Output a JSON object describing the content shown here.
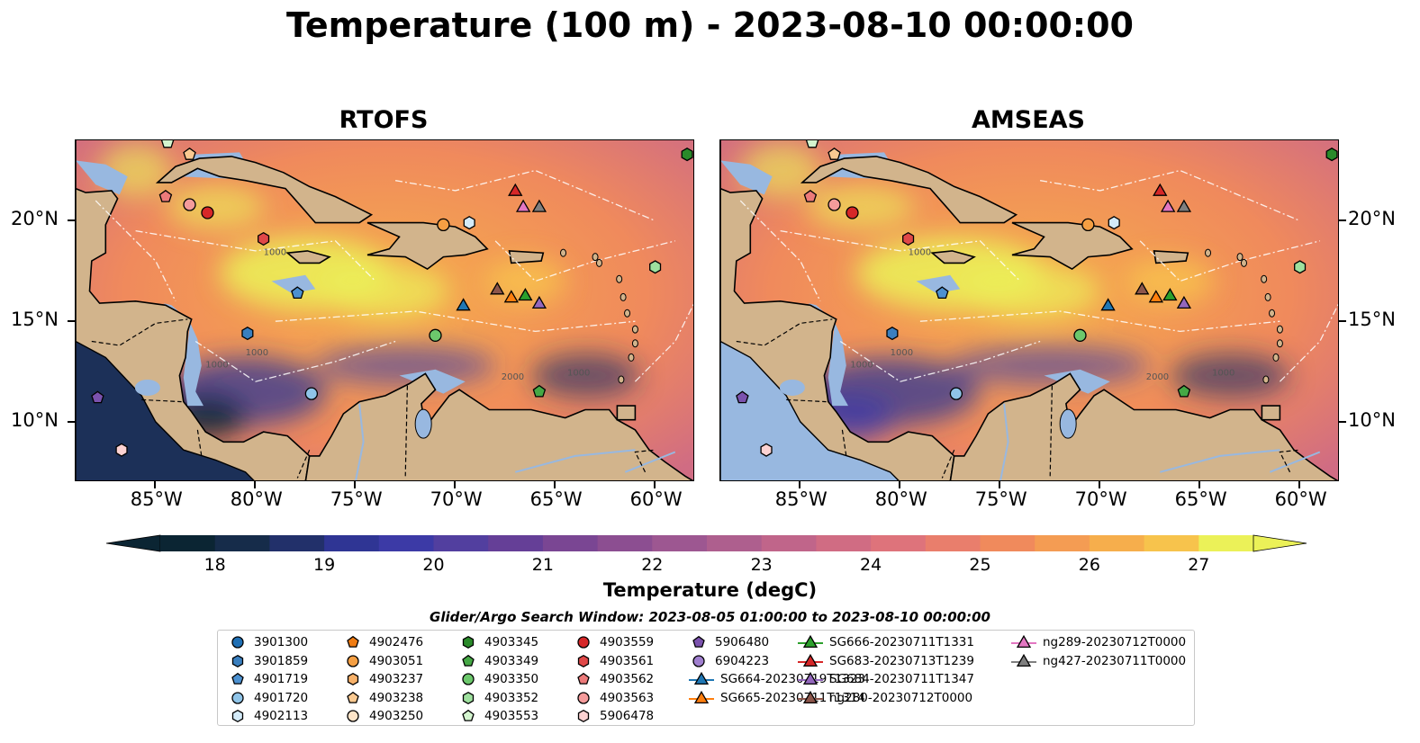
{
  "title": "Temperature (100 m) - 2023-08-10 00:00:00",
  "panels": [
    {
      "title": "RTOFS"
    },
    {
      "title": "AMSEAS"
    }
  ],
  "axes": {
    "x_ticks": [
      "85°W",
      "80°W",
      "75°W",
      "70°W",
      "65°W",
      "60°W"
    ],
    "y_ticks": [
      "20°N",
      "15°N",
      "10°N"
    ],
    "lon_range": [
      -89,
      -58
    ],
    "lat_range": [
      7,
      24
    ]
  },
  "contour_labels": [
    "1000",
    "1000",
    "1000",
    "1000",
    "2000"
  ],
  "colorbar": {
    "label": "Temperature (degC)",
    "ticks": [
      "18",
      "19",
      "20",
      "21",
      "22",
      "23",
      "24",
      "25",
      "26",
      "27"
    ],
    "min": 17.5,
    "max": 27.5,
    "colors": [
      "#0b2533",
      "#162c4a",
      "#22306a",
      "#2f3594",
      "#3c3aa6",
      "#523f9f",
      "#653f97",
      "#7a4693",
      "#8c4e91",
      "#9d5791",
      "#ae5f8e",
      "#c0658a",
      "#d06c83",
      "#de737b",
      "#e97e6c",
      "#f08a5c",
      "#f49c53",
      "#f6ae4c",
      "#f7c34c",
      "#ebf158"
    ]
  },
  "search_window": "Glider/Argo Search Window: 2023-08-05 01:00:00 to 2023-08-10 00:00:00",
  "legend": {
    "columns": [
      [
        {
          "label": "3901300",
          "marker": "circle",
          "color": "#1f6fb4"
        },
        {
          "label": "3901859",
          "marker": "hexagon",
          "color": "#3a7fbf"
        },
        {
          "label": "4901719",
          "marker": "pentagon",
          "color": "#4c91d1"
        },
        {
          "label": "4901720",
          "marker": "circle",
          "color": "#8fc4e8"
        },
        {
          "label": "4902113",
          "marker": "hexagon",
          "color": "#d4ebf9"
        }
      ],
      [
        {
          "label": "4902476",
          "marker": "pentagon",
          "color": "#f07c12"
        },
        {
          "label": "4903051",
          "marker": "circle",
          "color": "#f59f43"
        },
        {
          "label": "4903237",
          "marker": "hexagon",
          "color": "#f7b169"
        },
        {
          "label": "4903238",
          "marker": "pentagon",
          "color": "#f9c991"
        },
        {
          "label": "4903250",
          "marker": "circle",
          "color": "#fde4c8"
        }
      ],
      [
        {
          "label": "4903345",
          "marker": "hexagon",
          "color": "#2a8a2a"
        },
        {
          "label": "4903349",
          "marker": "pentagon",
          "color": "#45a845"
        },
        {
          "label": "4903350",
          "marker": "circle",
          "color": "#6cc86c"
        },
        {
          "label": "4903352",
          "marker": "hexagon",
          "color": "#9ee09e"
        },
        {
          "label": "4903553",
          "marker": "pentagon",
          "color": "#d4f5cf"
        }
      ],
      [
        {
          "label": "4903559",
          "marker": "circle",
          "color": "#d62728"
        },
        {
          "label": "4903561",
          "marker": "hexagon",
          "color": "#e04848"
        },
        {
          "label": "4903562",
          "marker": "pentagon",
          "color": "#ec7a7a"
        },
        {
          "label": "4903563",
          "marker": "circle",
          "color": "#f49b9b"
        },
        {
          "label": "5906478",
          "marker": "hexagon",
          "color": "#fcd2d2"
        }
      ],
      [
        {
          "label": "5906480",
          "marker": "pentagon",
          "color": "#7b52ae"
        },
        {
          "label": "6904223",
          "marker": "circle",
          "color": "#a07fcf"
        },
        {
          "label": "SG664-20230719T1323",
          "marker": "triangle-line",
          "color": "#1f77b4"
        },
        {
          "label": "SG665-20230711T1314",
          "marker": "triangle-line",
          "color": "#ff7f0e"
        },
        {
          "label": "SG666-20230711T1331",
          "marker": "triangle-line",
          "color": "#2ca02c"
        }
      ],
      [
        {
          "label": "SG683-20230713T1239",
          "marker": "triangle-line",
          "color": "#d62728"
        },
        {
          "label": "SG684-20230711T1347",
          "marker": "triangle-line",
          "color": "#9467bd"
        },
        {
          "label": "ng280-20230712T0000",
          "marker": "triangle-line",
          "color": "#8c564b"
        },
        {
          "label": "ng289-20230712T0000",
          "marker": "triangle-line",
          "color": "#e377c2"
        },
        {
          "label": "ng427-20230711T0000",
          "marker": "triangle-line",
          "color": "#7f7f7f"
        }
      ]
    ]
  },
  "markers": [
    {
      "lon": -84.5,
      "lat": 21.2,
      "shape": "pentagon",
      "color": "#ec7a7a"
    },
    {
      "lon": -83.3,
      "lat": 20.8,
      "shape": "circle",
      "color": "#f49b9b"
    },
    {
      "lon": -82.4,
      "lat": 20.4,
      "shape": "circle",
      "color": "#d62728"
    },
    {
      "lon": -79.6,
      "lat": 19.1,
      "shape": "hexagon",
      "color": "#e04848"
    },
    {
      "lon": -70.6,
      "lat": 19.8,
      "shape": "circle",
      "color": "#f59f43"
    },
    {
      "lon": -69.3,
      "lat": 19.9,
      "shape": "hexagon",
      "color": "#d4ebf9"
    },
    {
      "lon": -77.9,
      "lat": 16.4,
      "shape": "pentagon",
      "color": "#4c91d1"
    },
    {
      "lon": -80.4,
      "lat": 14.4,
      "shape": "hexagon",
      "color": "#3a7fbf"
    },
    {
      "lon": -71.0,
      "lat": 14.3,
      "shape": "circle",
      "color": "#6cc86c"
    },
    {
      "lon": -77.2,
      "lat": 11.4,
      "shape": "circle",
      "color": "#8fc4e8"
    },
    {
      "lon": -65.8,
      "lat": 11.5,
      "shape": "pentagon",
      "color": "#45a845"
    },
    {
      "lon": -60.0,
      "lat": 17.7,
      "shape": "hexagon",
      "color": "#9ee09e"
    },
    {
      "lon": -58.4,
      "lat": 23.3,
      "shape": "hexagon",
      "color": "#2a8a2a"
    },
    {
      "lon": -87.9,
      "lat": 11.2,
      "shape": "pentagon",
      "color": "#7b52ae"
    },
    {
      "lon": -86.7,
      "lat": 8.6,
      "shape": "hexagon",
      "color": "#fcd2d2"
    },
    {
      "lon": -84.4,
      "lat": 23.9,
      "shape": "pentagon",
      "color": "#d4f5cf"
    },
    {
      "lon": -83.3,
      "lat": 23.3,
      "shape": "pentagon",
      "color": "#f9c991"
    },
    {
      "lon": -69.6,
      "lat": 15.8,
      "shape": "triangle",
      "color": "#1f77b4"
    },
    {
      "lon": -67.2,
      "lat": 16.2,
      "shape": "triangle",
      "color": "#ff7f0e"
    },
    {
      "lon": -66.5,
      "lat": 16.3,
      "shape": "triangle",
      "color": "#2ca02c"
    },
    {
      "lon": -67.0,
      "lat": 21.5,
      "shape": "triangle",
      "color": "#d62728"
    },
    {
      "lon": -65.8,
      "lat": 15.9,
      "shape": "triangle",
      "color": "#9467bd"
    },
    {
      "lon": -67.9,
      "lat": 16.6,
      "shape": "triangle",
      "color": "#8c564b"
    },
    {
      "lon": -66.6,
      "lat": 20.7,
      "shape": "triangle",
      "color": "#e377c2"
    },
    {
      "lon": -65.8,
      "lat": 20.7,
      "shape": "triangle",
      "color": "#7f7f7f"
    }
  ]
}
